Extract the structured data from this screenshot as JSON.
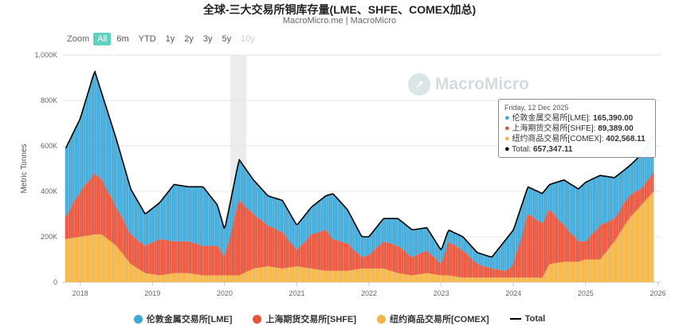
{
  "title": "全球-三大交易所铜库存量(LME、SHFE、COMEX加总)",
  "subtitle": "MacroMicro.me | MacroMicro",
  "watermark": "MacroMicro",
  "zoom": {
    "label": "Zoom",
    "buttons": [
      "All",
      "6m",
      "YTD",
      "1y",
      "2y",
      "3y",
      "5y",
      "10y"
    ],
    "active": "All",
    "disabled": [
      "10y"
    ]
  },
  "tooltip": {
    "date": "Friday, 12 Dec 2025",
    "rows": [
      {
        "label": "伦敦金属交易所[LME]: ",
        "value": "165,390.00",
        "color": "#3ea9d8"
      },
      {
        "label": "上海期货交易所[SHFE]: ",
        "value": "89,389.00",
        "color": "#e8533a"
      },
      {
        "label": "纽约商品交易所[COMEX]: ",
        "value": "402,568.11",
        "color": "#f5b544"
      },
      {
        "label": "Total: ",
        "value": "657,347.11",
        "color": "#000000"
      }
    ]
  },
  "legend": [
    {
      "label": "伦敦金属交易所[LME]",
      "color": "#3ea9d8",
      "kind": "dot"
    },
    {
      "label": "上海期货交易所[SHFE]",
      "color": "#e8533a",
      "kind": "dot"
    },
    {
      "label": "纽约商品交易所[COMEX]",
      "color": "#f5b544",
      "kind": "dot"
    },
    {
      "label": "Total",
      "color": "#000000",
      "kind": "line"
    }
  ],
  "chart_data": {
    "type": "bar",
    "stacked": true,
    "ylabel": "Metric Tonnes",
    "yticks": [
      "0",
      "200K",
      "400K",
      "600K",
      "800K",
      "1,000K"
    ],
    "ylim": [
      0,
      1000000
    ],
    "xticks": [
      "2018",
      "2019",
      "2020",
      "2021",
      "2022",
      "2023",
      "2024",
      "2025",
      "2026"
    ],
    "xlim": [
      2017.75,
      2026.05
    ],
    "grid": true,
    "highlight_band": [
      2020.08,
      2020.3
    ],
    "x": [
      2017.8,
      2018.0,
      2018.2,
      2018.3,
      2018.5,
      2018.7,
      2018.9,
      2019.1,
      2019.3,
      2019.5,
      2019.7,
      2019.9,
      2020.0,
      2020.2,
      2020.4,
      2020.6,
      2020.8,
      2021.0,
      2021.2,
      2021.4,
      2021.5,
      2021.7,
      2021.9,
      2022.0,
      2022.2,
      2022.4,
      2022.6,
      2022.8,
      2023.0,
      2023.1,
      2023.3,
      2023.5,
      2023.7,
      2023.9,
      2024.0,
      2024.2,
      2024.4,
      2024.5,
      2024.7,
      2024.9,
      2025.0,
      2025.2,
      2025.4,
      2025.6,
      2025.8,
      2025.95
    ],
    "series": [
      {
        "name": "伦敦金属交易所[LME]",
        "color": "#3ea9d8",
        "values": [
          300000,
          320000,
          450000,
          380000,
          300000,
          200000,
          140000,
          160000,
          250000,
          240000,
          260000,
          180000,
          120000,
          180000,
          150000,
          130000,
          140000,
          110000,
          120000,
          150000,
          200000,
          150000,
          90000,
          80000,
          100000,
          120000,
          120000,
          100000,
          60000,
          50000,
          60000,
          50000,
          50000,
          140000,
          150000,
          120000,
          130000,
          110000,
          200000,
          230000,
          260000,
          220000,
          180000,
          130000,
          150000,
          165390
        ]
      },
      {
        "name": "上海期货交易所[SHFE]",
        "color": "#e8533a",
        "values": [
          100000,
          200000,
          270000,
          240000,
          170000,
          130000,
          120000,
          160000,
          140000,
          140000,
          130000,
          130000,
          80000,
          330000,
          240000,
          180000,
          160000,
          70000,
          150000,
          180000,
          140000,
          120000,
          50000,
          60000,
          120000,
          120000,
          80000,
          100000,
          50000,
          150000,
          120000,
          60000,
          40000,
          30000,
          60000,
          280000,
          240000,
          240000,
          160000,
          90000,
          80000,
          150000,
          100000,
          100000,
          70000,
          89389
        ]
      },
      {
        "name": "纽约商品交易所[COMEX]",
        "color": "#f5b544",
        "values": [
          190000,
          200000,
          210000,
          210000,
          160000,
          80000,
          40000,
          30000,
          40000,
          40000,
          30000,
          30000,
          30000,
          30000,
          60000,
          70000,
          60000,
          70000,
          60000,
          50000,
          50000,
          50000,
          60000,
          60000,
          60000,
          40000,
          30000,
          40000,
          30000,
          30000,
          20000,
          20000,
          20000,
          20000,
          20000,
          20000,
          20000,
          80000,
          90000,
          90000,
          100000,
          100000,
          180000,
          280000,
          350000,
          402568
        ]
      }
    ]
  }
}
